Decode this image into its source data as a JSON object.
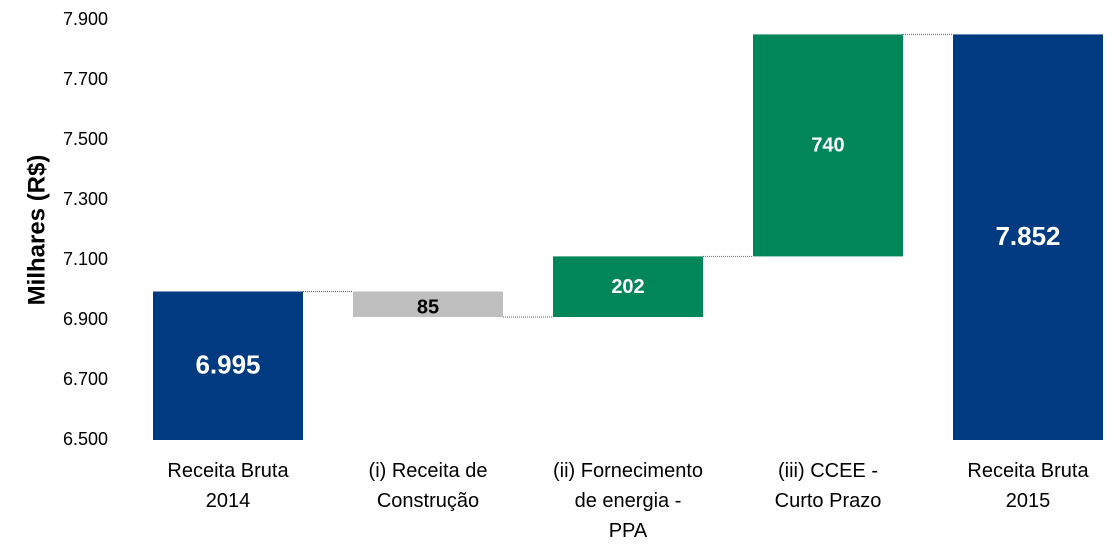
{
  "chart_data": {
    "type": "waterfall",
    "y_label": "Milhares (R$)",
    "categories": [
      [
        "Receita Bruta",
        "2014"
      ],
      [
        "(i) Receita de",
        "Construção"
      ],
      [
        "(ii) Fornecimento",
        "de energia -",
        "PPA"
      ],
      [
        "(iii) CCEE -",
        "Curto Prazo"
      ],
      [
        "Receita Bruta",
        "2015"
      ]
    ],
    "values": [
      6995,
      -85,
      202,
      740,
      7852
    ],
    "value_labels": [
      "6.995",
      "85",
      "202",
      "740",
      "7.852"
    ],
    "totals": [
      true,
      false,
      false,
      false,
      true
    ],
    "colors": {
      "total": "#003a80",
      "increase": "#008658",
      "decrease": "#bfbfbf"
    },
    "ylim": [
      6500,
      7900
    ],
    "yticks": [
      {
        "value": 6500,
        "label": "6.500"
      },
      {
        "value": 6700,
        "label": "6.700"
      },
      {
        "value": 6900,
        "label": "6.900"
      },
      {
        "value": 7100,
        "label": "7.100"
      },
      {
        "value": 7300,
        "label": "7.300"
      },
      {
        "value": 7500,
        "label": "7.500"
      },
      {
        "value": 7700,
        "label": "7.700"
      },
      {
        "value": 7900,
        "label": "7.900"
      }
    ]
  }
}
